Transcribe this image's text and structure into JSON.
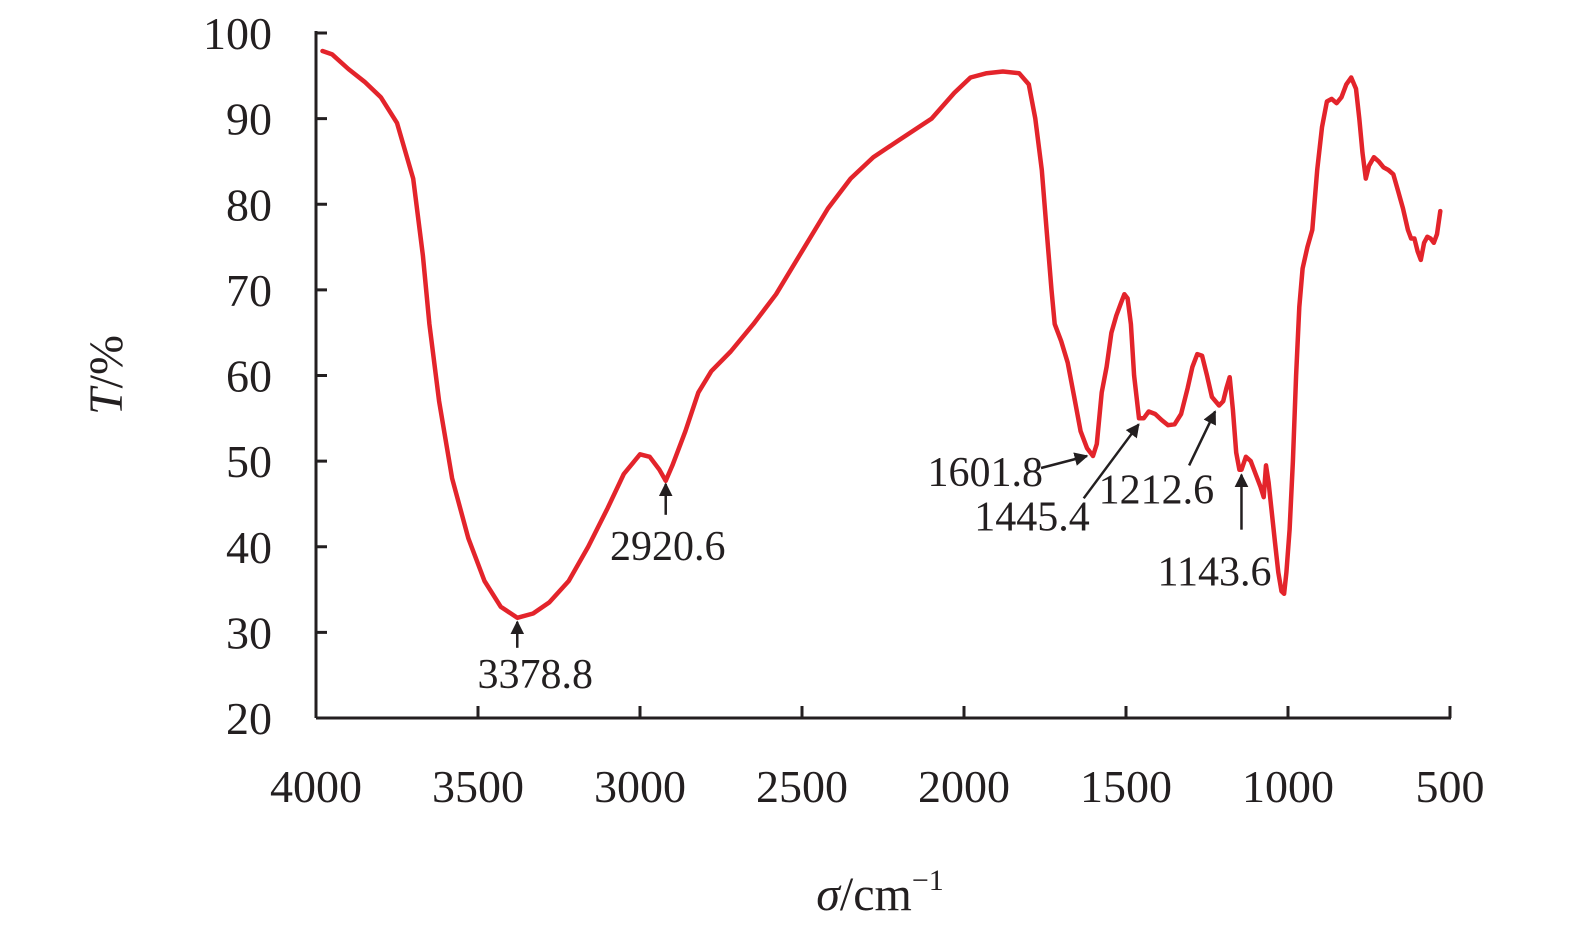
{
  "chart_data": {
    "type": "line",
    "title": "",
    "xlabel_var": "σ",
    "xlabel_unit": "/cm",
    "xlabel_exp": "−1",
    "ylabel_var": "T",
    "ylabel_unit": "/%",
    "xlim": [
      4000,
      500
    ],
    "ylim": [
      20,
      100
    ],
    "xticks": [
      4000,
      3500,
      3000,
      2500,
      2000,
      1500,
      1000,
      500
    ],
    "yticks": [
      20,
      30,
      40,
      50,
      60,
      70,
      80,
      90,
      100
    ],
    "xtick_labels": [
      "4000",
      "3500",
      "3000",
      "2500",
      "2000",
      "1500",
      "1000",
      "500"
    ],
    "ytick_labels": [
      "20",
      "30",
      "40",
      "50",
      "60",
      "70",
      "80",
      "90",
      "100"
    ],
    "grid": false,
    "series": [
      {
        "color": "#e3242b",
        "points": [
          [
            3980,
            97.9
          ],
          [
            3950,
            97.5
          ],
          [
            3900,
            95.8
          ],
          [
            3850,
            94.3
          ],
          [
            3800,
            92.5
          ],
          [
            3750,
            89.5
          ],
          [
            3700,
            83.0
          ],
          [
            3670,
            74.0
          ],
          [
            3650,
            66.0
          ],
          [
            3620,
            57.0
          ],
          [
            3580,
            48.0
          ],
          [
            3530,
            41.0
          ],
          [
            3480,
            36.0
          ],
          [
            3430,
            33.0
          ],
          [
            3378.8,
            31.7
          ],
          [
            3330,
            32.2
          ],
          [
            3280,
            33.5
          ],
          [
            3220,
            36.0
          ],
          [
            3160,
            40.0
          ],
          [
            3100,
            44.5
          ],
          [
            3050,
            48.5
          ],
          [
            3000,
            50.8
          ],
          [
            2970,
            50.5
          ],
          [
            2940,
            49.0
          ],
          [
            2920.6,
            47.7
          ],
          [
            2900,
            49.5
          ],
          [
            2860,
            53.5
          ],
          [
            2820,
            58.0
          ],
          [
            2780,
            60.5
          ],
          [
            2720,
            62.8
          ],
          [
            2650,
            66.0
          ],
          [
            2580,
            69.5
          ],
          [
            2500,
            74.5
          ],
          [
            2420,
            79.5
          ],
          [
            2350,
            83.0
          ],
          [
            2280,
            85.5
          ],
          [
            2200,
            87.5
          ],
          [
            2100,
            90.0
          ],
          [
            2030,
            93.0
          ],
          [
            1980,
            94.8
          ],
          [
            1930,
            95.3
          ],
          [
            1880,
            95.5
          ],
          [
            1830,
            95.3
          ],
          [
            1800,
            94.0
          ],
          [
            1780,
            90.0
          ],
          [
            1760,
            84.0
          ],
          [
            1745,
            77.0
          ],
          [
            1730,
            70.0
          ],
          [
            1720,
            66.0
          ],
          [
            1700,
            64.0
          ],
          [
            1680,
            61.5
          ],
          [
            1660,
            57.5
          ],
          [
            1640,
            53.5
          ],
          [
            1620,
            51.5
          ],
          [
            1601.8,
            50.6
          ],
          [
            1590,
            52.0
          ],
          [
            1575,
            58.0
          ],
          [
            1560,
            61.0
          ],
          [
            1545,
            65.0
          ],
          [
            1530,
            67.0
          ],
          [
            1515,
            68.5
          ],
          [
            1505,
            69.5
          ],
          [
            1495,
            69.0
          ],
          [
            1485,
            66.0
          ],
          [
            1475,
            60.0
          ],
          [
            1460,
            55.0
          ],
          [
            1445.4,
            55.0
          ],
          [
            1430,
            55.8
          ],
          [
            1410,
            55.5
          ],
          [
            1390,
            54.8
          ],
          [
            1370,
            54.2
          ],
          [
            1350,
            54.3
          ],
          [
            1330,
            55.5
          ],
          [
            1310,
            58.5
          ],
          [
            1295,
            61.0
          ],
          [
            1280,
            62.5
          ],
          [
            1265,
            62.3
          ],
          [
            1250,
            60.0
          ],
          [
            1235,
            57.5
          ],
          [
            1212.6,
            56.5
          ],
          [
            1200,
            57.0
          ],
          [
            1190,
            58.5
          ],
          [
            1180,
            59.8
          ],
          [
            1170,
            56.0
          ],
          [
            1160,
            51.0
          ],
          [
            1150,
            49.0
          ],
          [
            1143.6,
            49.0
          ],
          [
            1130,
            50.5
          ],
          [
            1115,
            50.0
          ],
          [
            1100,
            48.5
          ],
          [
            1085,
            47.0
          ],
          [
            1075,
            45.8
          ],
          [
            1068,
            49.5
          ],
          [
            1060,
            47.5
          ],
          [
            1050,
            44.0
          ],
          [
            1040,
            40.5
          ],
          [
            1030,
            37.0
          ],
          [
            1020,
            34.8
          ],
          [
            1012,
            34.5
          ],
          [
            1005,
            37.0
          ],
          [
            995,
            42.0
          ],
          [
            985,
            50.0
          ],
          [
            975,
            60.0
          ],
          [
            965,
            68.0
          ],
          [
            955,
            72.5
          ],
          [
            940,
            75.0
          ],
          [
            925,
            77.0
          ],
          [
            910,
            84.0
          ],
          [
            895,
            89.0
          ],
          [
            880,
            92.0
          ],
          [
            865,
            92.3
          ],
          [
            850,
            91.8
          ],
          [
            835,
            92.5
          ],
          [
            820,
            94.0
          ],
          [
            805,
            94.8
          ],
          [
            790,
            93.5
          ],
          [
            780,
            90.0
          ],
          [
            770,
            86.0
          ],
          [
            760,
            83.0
          ],
          [
            750,
            84.5
          ],
          [
            735,
            85.5
          ],
          [
            720,
            85.0
          ],
          [
            705,
            84.3
          ],
          [
            690,
            84.0
          ],
          [
            675,
            83.5
          ],
          [
            660,
            81.5
          ],
          [
            645,
            79.5
          ],
          [
            630,
            77.0
          ],
          [
            620,
            76.0
          ],
          [
            610,
            76.0
          ],
          [
            600,
            74.5
          ],
          [
            590,
            73.5
          ],
          [
            580,
            75.5
          ],
          [
            570,
            76.2
          ],
          [
            560,
            76.0
          ],
          [
            550,
            75.5
          ],
          [
            540,
            76.5
          ],
          [
            530,
            79.2
          ]
        ]
      }
    ],
    "annotations": [
      {
        "label": "3378.8",
        "x": 3378.8,
        "y": 31.7,
        "tip_dy": 4,
        "tail_dx": 0,
        "tail_dy": 30,
        "text_dx": 18,
        "text_dy": 70,
        "anchor": "middle"
      },
      {
        "label": "2920.6",
        "x": 2920.6,
        "y": 47.7,
        "tip_dy": 3,
        "tail_dx": 0,
        "tail_dy": 34,
        "text_dx": 2,
        "text_dy": 79,
        "anchor": "middle"
      },
      {
        "label": "1601.8",
        "x": 1601.8,
        "y": 50.6,
        "tip_dx": -6,
        "tip_dy": 0,
        "tail_dx": -52,
        "tail_dy": 12,
        "text_dx": -50,
        "text_dy": 30,
        "anchor": "end"
      },
      {
        "label": "1445.4",
        "x": 1445.4,
        "y": 55.0,
        "tip_dx": -5,
        "tip_dy": 6,
        "tail_dx": -60,
        "tail_dy": 80,
        "text_dx": -54,
        "text_dy": 112,
        "anchor": "end"
      },
      {
        "label": "1212.6",
        "x": 1212.6,
        "y": 56.5,
        "tip_dx": -4,
        "tip_dy": 6,
        "tail_dx": -30,
        "tail_dy": 60,
        "text_dx": -5,
        "text_dy": 98,
        "anchor": "end"
      },
      {
        "label": "1143.6",
        "x": 1143.6,
        "y": 49.0,
        "tip_dy": 5,
        "tail_dx": 0,
        "tail_dy": 60,
        "text_dx": 30,
        "text_dy": 116,
        "anchor": "end"
      }
    ]
  }
}
